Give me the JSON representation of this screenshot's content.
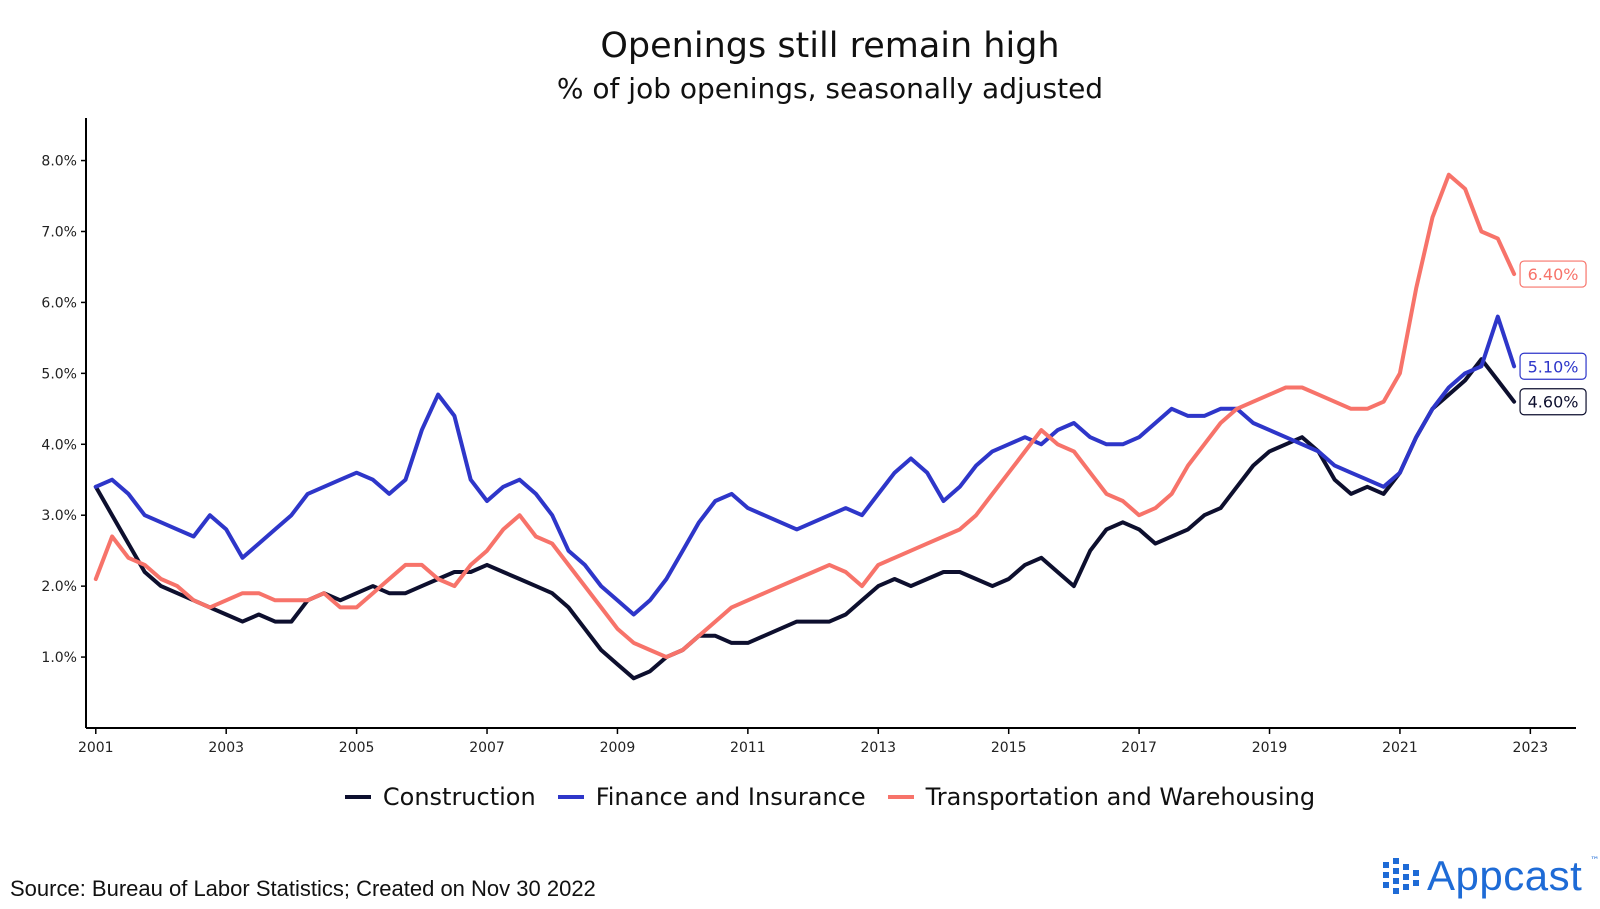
{
  "title": "Openings still remain high",
  "subtitle": "% of job openings, seasonally adjusted",
  "source": "Source: Bureau of Labor Statistics; Created on Nov 30 2022",
  "brand": {
    "name": "Appcast",
    "tm": "™",
    "color": "#1e6bd6"
  },
  "chart_data": {
    "type": "line",
    "title": "Openings still remain high",
    "subtitle": "% of job openings, seasonally adjusted",
    "xlabel": "",
    "ylabel": "",
    "xlim": [
      2000.85,
      2023.7
    ],
    "ylim": [
      0,
      8.6
    ],
    "x_ticks": [
      2001,
      2003,
      2005,
      2007,
      2009,
      2011,
      2013,
      2015,
      2017,
      2019,
      2021,
      2023
    ],
    "y_ticks": [
      1,
      2,
      3,
      4,
      5,
      6,
      7,
      8
    ],
    "y_tick_labels": [
      "1.0%",
      "2.0%",
      "3.0%",
      "4.0%",
      "5.0%",
      "6.0%",
      "7.0%",
      "8.0%"
    ],
    "grid": false,
    "legend_position": "bottom",
    "series": [
      {
        "name": "Construction",
        "color": "#0d0f2e",
        "end_label": "4.60%",
        "points": [
          [
            2001.0,
            3.4
          ],
          [
            2001.25,
            3.0
          ],
          [
            2001.5,
            2.6
          ],
          [
            2001.75,
            2.2
          ],
          [
            2002.0,
            2.0
          ],
          [
            2002.25,
            1.9
          ],
          [
            2002.5,
            1.8
          ],
          [
            2002.75,
            1.7
          ],
          [
            2003.0,
            1.6
          ],
          [
            2003.25,
            1.5
          ],
          [
            2003.5,
            1.6
          ],
          [
            2003.75,
            1.5
          ],
          [
            2004.0,
            1.5
          ],
          [
            2004.25,
            1.8
          ],
          [
            2004.5,
            1.9
          ],
          [
            2004.75,
            1.8
          ],
          [
            2005.0,
            1.9
          ],
          [
            2005.25,
            2.0
          ],
          [
            2005.5,
            1.9
          ],
          [
            2005.75,
            1.9
          ],
          [
            2006.0,
            2.0
          ],
          [
            2006.25,
            2.1
          ],
          [
            2006.5,
            2.2
          ],
          [
            2006.75,
            2.2
          ],
          [
            2007.0,
            2.3
          ],
          [
            2007.25,
            2.2
          ],
          [
            2007.5,
            2.1
          ],
          [
            2007.75,
            2.0
          ],
          [
            2008.0,
            1.9
          ],
          [
            2008.25,
            1.7
          ],
          [
            2008.5,
            1.4
          ],
          [
            2008.75,
            1.1
          ],
          [
            2009.0,
            0.9
          ],
          [
            2009.25,
            0.7
          ],
          [
            2009.5,
            0.8
          ],
          [
            2009.75,
            1.0
          ],
          [
            2010.0,
            1.1
          ],
          [
            2010.25,
            1.3
          ],
          [
            2010.5,
            1.3
          ],
          [
            2010.75,
            1.2
          ],
          [
            2011.0,
            1.2
          ],
          [
            2011.25,
            1.3
          ],
          [
            2011.5,
            1.4
          ],
          [
            2011.75,
            1.5
          ],
          [
            2012.0,
            1.5
          ],
          [
            2012.25,
            1.5
          ],
          [
            2012.5,
            1.6
          ],
          [
            2012.75,
            1.8
          ],
          [
            2013.0,
            2.0
          ],
          [
            2013.25,
            2.1
          ],
          [
            2013.5,
            2.0
          ],
          [
            2013.75,
            2.1
          ],
          [
            2014.0,
            2.2
          ],
          [
            2014.25,
            2.2
          ],
          [
            2014.5,
            2.1
          ],
          [
            2014.75,
            2.0
          ],
          [
            2015.0,
            2.1
          ],
          [
            2015.25,
            2.3
          ],
          [
            2015.5,
            2.4
          ],
          [
            2015.75,
            2.2
          ],
          [
            2016.0,
            2.0
          ],
          [
            2016.25,
            2.5
          ],
          [
            2016.5,
            2.8
          ],
          [
            2016.75,
            2.9
          ],
          [
            2017.0,
            2.8
          ],
          [
            2017.25,
            2.6
          ],
          [
            2017.5,
            2.7
          ],
          [
            2017.75,
            2.8
          ],
          [
            2018.0,
            3.0
          ],
          [
            2018.25,
            3.1
          ],
          [
            2018.5,
            3.4
          ],
          [
            2018.75,
            3.7
          ],
          [
            2019.0,
            3.9
          ],
          [
            2019.25,
            4.0
          ],
          [
            2019.5,
            4.1
          ],
          [
            2019.75,
            3.9
          ],
          [
            2020.0,
            3.5
          ],
          [
            2020.25,
            3.3
          ],
          [
            2020.5,
            3.4
          ],
          [
            2020.75,
            3.3
          ],
          [
            2021.0,
            3.6
          ],
          [
            2021.25,
            4.1
          ],
          [
            2021.5,
            4.5
          ],
          [
            2021.75,
            4.7
          ],
          [
            2022.0,
            4.9
          ],
          [
            2022.25,
            5.2
          ],
          [
            2022.5,
            4.9
          ],
          [
            2022.75,
            4.6
          ]
        ]
      },
      {
        "name": "Finance and Insurance",
        "color": "#2e36c9",
        "end_label": "5.10%",
        "points": [
          [
            2001.0,
            3.4
          ],
          [
            2001.25,
            3.5
          ],
          [
            2001.5,
            3.3
          ],
          [
            2001.75,
            3.0
          ],
          [
            2002.0,
            2.9
          ],
          [
            2002.25,
            2.8
          ],
          [
            2002.5,
            2.7
          ],
          [
            2002.75,
            3.0
          ],
          [
            2003.0,
            2.8
          ],
          [
            2003.25,
            2.4
          ],
          [
            2003.5,
            2.6
          ],
          [
            2003.75,
            2.8
          ],
          [
            2004.0,
            3.0
          ],
          [
            2004.25,
            3.3
          ],
          [
            2004.5,
            3.4
          ],
          [
            2004.75,
            3.5
          ],
          [
            2005.0,
            3.6
          ],
          [
            2005.25,
            3.5
          ],
          [
            2005.5,
            3.3
          ],
          [
            2005.75,
            3.5
          ],
          [
            2006.0,
            4.2
          ],
          [
            2006.25,
            4.7
          ],
          [
            2006.5,
            4.4
          ],
          [
            2006.75,
            3.5
          ],
          [
            2007.0,
            3.2
          ],
          [
            2007.25,
            3.4
          ],
          [
            2007.5,
            3.5
          ],
          [
            2007.75,
            3.3
          ],
          [
            2008.0,
            3.0
          ],
          [
            2008.25,
            2.5
          ],
          [
            2008.5,
            2.3
          ],
          [
            2008.75,
            2.0
          ],
          [
            2009.0,
            1.8
          ],
          [
            2009.25,
            1.6
          ],
          [
            2009.5,
            1.8
          ],
          [
            2009.75,
            2.1
          ],
          [
            2010.0,
            2.5
          ],
          [
            2010.25,
            2.9
          ],
          [
            2010.5,
            3.2
          ],
          [
            2010.75,
            3.3
          ],
          [
            2011.0,
            3.1
          ],
          [
            2011.25,
            3.0
          ],
          [
            2011.5,
            2.9
          ],
          [
            2011.75,
            2.8
          ],
          [
            2012.0,
            2.9
          ],
          [
            2012.25,
            3.0
          ],
          [
            2012.5,
            3.1
          ],
          [
            2012.75,
            3.0
          ],
          [
            2013.0,
            3.3
          ],
          [
            2013.25,
            3.6
          ],
          [
            2013.5,
            3.8
          ],
          [
            2013.75,
            3.6
          ],
          [
            2014.0,
            3.2
          ],
          [
            2014.25,
            3.4
          ],
          [
            2014.5,
            3.7
          ],
          [
            2014.75,
            3.9
          ],
          [
            2015.0,
            4.0
          ],
          [
            2015.25,
            4.1
          ],
          [
            2015.5,
            4.0
          ],
          [
            2015.75,
            4.2
          ],
          [
            2016.0,
            4.3
          ],
          [
            2016.25,
            4.1
          ],
          [
            2016.5,
            4.0
          ],
          [
            2016.75,
            4.0
          ],
          [
            2017.0,
            4.1
          ],
          [
            2017.25,
            4.3
          ],
          [
            2017.5,
            4.5
          ],
          [
            2017.75,
            4.4
          ],
          [
            2018.0,
            4.4
          ],
          [
            2018.25,
            4.5
          ],
          [
            2018.5,
            4.5
          ],
          [
            2018.75,
            4.3
          ],
          [
            2019.0,
            4.2
          ],
          [
            2019.25,
            4.1
          ],
          [
            2019.5,
            4.0
          ],
          [
            2019.75,
            3.9
          ],
          [
            2020.0,
            3.7
          ],
          [
            2020.25,
            3.6
          ],
          [
            2020.5,
            3.5
          ],
          [
            2020.75,
            3.4
          ],
          [
            2021.0,
            3.6
          ],
          [
            2021.25,
            4.1
          ],
          [
            2021.5,
            4.5
          ],
          [
            2021.75,
            4.8
          ],
          [
            2022.0,
            5.0
          ],
          [
            2022.25,
            5.1
          ],
          [
            2022.5,
            5.8
          ],
          [
            2022.75,
            5.1
          ]
        ]
      },
      {
        "name": "Transportation and Warehousing",
        "color": "#f7736a",
        "end_label": "6.40%",
        "points": [
          [
            2001.0,
            2.1
          ],
          [
            2001.25,
            2.7
          ],
          [
            2001.5,
            2.4
          ],
          [
            2001.75,
            2.3
          ],
          [
            2002.0,
            2.1
          ],
          [
            2002.25,
            2.0
          ],
          [
            2002.5,
            1.8
          ],
          [
            2002.75,
            1.7
          ],
          [
            2003.0,
            1.8
          ],
          [
            2003.25,
            1.9
          ],
          [
            2003.5,
            1.9
          ],
          [
            2003.75,
            1.8
          ],
          [
            2004.0,
            1.8
          ],
          [
            2004.25,
            1.8
          ],
          [
            2004.5,
            1.9
          ],
          [
            2004.75,
            1.7
          ],
          [
            2005.0,
            1.7
          ],
          [
            2005.25,
            1.9
          ],
          [
            2005.5,
            2.1
          ],
          [
            2005.75,
            2.3
          ],
          [
            2006.0,
            2.3
          ],
          [
            2006.25,
            2.1
          ],
          [
            2006.5,
            2.0
          ],
          [
            2006.75,
            2.3
          ],
          [
            2007.0,
            2.5
          ],
          [
            2007.25,
            2.8
          ],
          [
            2007.5,
            3.0
          ],
          [
            2007.75,
            2.7
          ],
          [
            2008.0,
            2.6
          ],
          [
            2008.25,
            2.3
          ],
          [
            2008.5,
            2.0
          ],
          [
            2008.75,
            1.7
          ],
          [
            2009.0,
            1.4
          ],
          [
            2009.25,
            1.2
          ],
          [
            2009.5,
            1.1
          ],
          [
            2009.75,
            1.0
          ],
          [
            2010.0,
            1.1
          ],
          [
            2010.25,
            1.3
          ],
          [
            2010.5,
            1.5
          ],
          [
            2010.75,
            1.7
          ],
          [
            2011.0,
            1.8
          ],
          [
            2011.25,
            1.9
          ],
          [
            2011.5,
            2.0
          ],
          [
            2011.75,
            2.1
          ],
          [
            2012.0,
            2.2
          ],
          [
            2012.25,
            2.3
          ],
          [
            2012.5,
            2.2
          ],
          [
            2012.75,
            2.0
          ],
          [
            2013.0,
            2.3
          ],
          [
            2013.25,
            2.4
          ],
          [
            2013.5,
            2.5
          ],
          [
            2013.75,
            2.6
          ],
          [
            2014.0,
            2.7
          ],
          [
            2014.25,
            2.8
          ],
          [
            2014.5,
            3.0
          ],
          [
            2014.75,
            3.3
          ],
          [
            2015.0,
            3.6
          ],
          [
            2015.25,
            3.9
          ],
          [
            2015.5,
            4.2
          ],
          [
            2015.75,
            4.0
          ],
          [
            2016.0,
            3.9
          ],
          [
            2016.25,
            3.6
          ],
          [
            2016.5,
            3.3
          ],
          [
            2016.75,
            3.2
          ],
          [
            2017.0,
            3.0
          ],
          [
            2017.25,
            3.1
          ],
          [
            2017.5,
            3.3
          ],
          [
            2017.75,
            3.7
          ],
          [
            2018.0,
            4.0
          ],
          [
            2018.25,
            4.3
          ],
          [
            2018.5,
            4.5
          ],
          [
            2018.75,
            4.6
          ],
          [
            2019.0,
            4.7
          ],
          [
            2019.25,
            4.8
          ],
          [
            2019.5,
            4.8
          ],
          [
            2019.75,
            4.7
          ],
          [
            2020.0,
            4.6
          ],
          [
            2020.25,
            4.5
          ],
          [
            2020.5,
            4.5
          ],
          [
            2020.75,
            4.6
          ],
          [
            2021.0,
            5.0
          ],
          [
            2021.25,
            6.2
          ],
          [
            2021.5,
            7.2
          ],
          [
            2021.75,
            7.8
          ],
          [
            2022.0,
            7.6
          ],
          [
            2022.25,
            7.0
          ],
          [
            2022.5,
            6.9
          ],
          [
            2022.75,
            6.4
          ]
        ]
      }
    ]
  }
}
